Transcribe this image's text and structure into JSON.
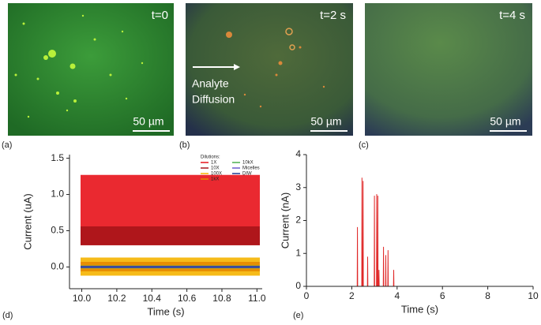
{
  "images": [
    {
      "panel": "(a)",
      "label": "t=0",
      "scale": "50 µm"
    },
    {
      "panel": "(b)",
      "label": "t=2 s",
      "scale": "50 µm",
      "annotation": [
        "Analyte",
        "Diffusion"
      ]
    },
    {
      "panel": "(c)",
      "label": "t=4 s",
      "scale": "50 µm"
    }
  ],
  "chart_data": [
    {
      "type": "band",
      "panel": "(d)",
      "x_label": "Time (s)",
      "y_label": "Current (uA)",
      "legend_title": "Dilutions:",
      "xlim": [
        9.93,
        11.03
      ],
      "ylim": [
        -0.3,
        1.55
      ],
      "xticks": [
        {
          "value": 10,
          "label": "10.0"
        },
        10.2,
        10.4,
        10.6,
        10.8,
        {
          "value": 11,
          "label": "11.0"
        }
      ],
      "yticks": [
        {
          "value": 0,
          "label": "0.0"
        },
        0.5,
        {
          "value": 1,
          "label": "1.0"
        },
        1.5
      ],
      "series": [
        {
          "name": "1X",
          "color": "#e8121a",
          "values": [
            0.3,
            1.27
          ]
        },
        {
          "name": "10X",
          "color": "#a8141a",
          "values": [
            0.3,
            0.56
          ]
        },
        {
          "name": "100X",
          "color": "#f5b400",
          "values": [
            -0.12,
            0.13
          ]
        },
        {
          "name": "1kX",
          "color": "#e58a00",
          "values": [
            -0.06,
            0.07
          ]
        },
        {
          "name": "10kX",
          "color": "#4caf50",
          "values": [
            -0.02,
            0.02
          ]
        },
        {
          "name": "Micelles",
          "color": "#6a5acd",
          "values": [
            -0.015,
            0.015
          ]
        },
        {
          "name": "DIW",
          "color": "#1f3a93",
          "values": [
            -0.01,
            0.01
          ]
        }
      ]
    },
    {
      "type": "line",
      "panel": "(e)",
      "x_label": "Time (s)",
      "y_label": "Current (nA)",
      "color": "#e02828",
      "xlim": [
        0,
        10
      ],
      "ylim": [
        0,
        4
      ],
      "xticks": [
        0,
        2,
        4,
        6,
        8,
        10
      ],
      "yticks": [
        0,
        1,
        2,
        3,
        4
      ],
      "x": [
        0,
        2.24,
        2.25,
        2.26,
        2.44,
        2.45,
        2.46,
        2.49,
        2.5,
        2.51,
        2.69,
        2.7,
        2.71,
        2.99,
        3.0,
        3.01,
        3.09,
        3.1,
        3.11,
        3.14,
        3.15,
        3.16,
        3.19,
        3.2,
        3.21,
        3.39,
        3.4,
        3.41,
        3.49,
        3.5,
        3.51,
        3.59,
        3.6,
        3.61,
        3.84,
        3.85,
        3.86,
        10
      ],
      "values": [
        0,
        0,
        1.8,
        0,
        0,
        3.3,
        0,
        0,
        3.2,
        0,
        0,
        0.9,
        0,
        0,
        2.75,
        0,
        0,
        2.8,
        0,
        0,
        2.75,
        0,
        0,
        0.5,
        0,
        0,
        1.2,
        0,
        0,
        0.95,
        0,
        0,
        1.1,
        0,
        0,
        0.5,
        0,
        0
      ]
    }
  ]
}
